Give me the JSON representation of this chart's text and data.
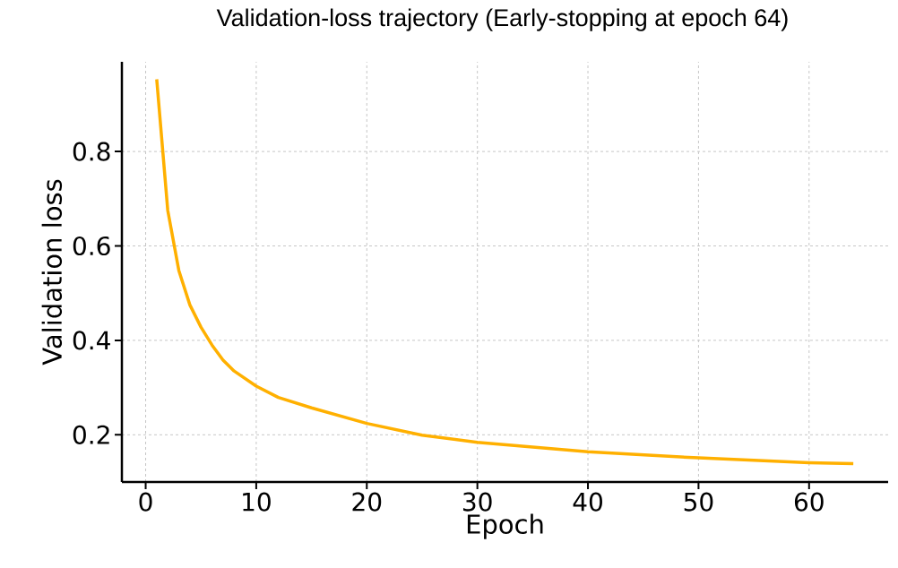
{
  "chart_data": {
    "type": "line",
    "title": "Validation-loss trajectory (Early-stopping at epoch 64)",
    "xlabel": "Epoch",
    "ylabel": "Validation  loss",
    "x": [
      1,
      2,
      3,
      4,
      5,
      6,
      7,
      8,
      10,
      12,
      15,
      20,
      25,
      30,
      40,
      50,
      60,
      64
    ],
    "values": [
      0.953,
      0.675,
      0.548,
      0.475,
      0.428,
      0.39,
      0.358,
      0.335,
      0.303,
      0.279,
      0.257,
      0.224,
      0.199,
      0.184,
      0.164,
      0.151,
      0.141,
      0.139
    ],
    "color": "#ffb000",
    "line_style": "solid",
    "grid": true,
    "xlim": [
      -2.15,
      67.15
    ],
    "ylim": [
      0.1,
      0.99
    ],
    "xticks": [
      0,
      10,
      20,
      30,
      40,
      50,
      60
    ],
    "yticks": [
      0.2,
      0.4,
      0.6,
      0.8
    ]
  }
}
